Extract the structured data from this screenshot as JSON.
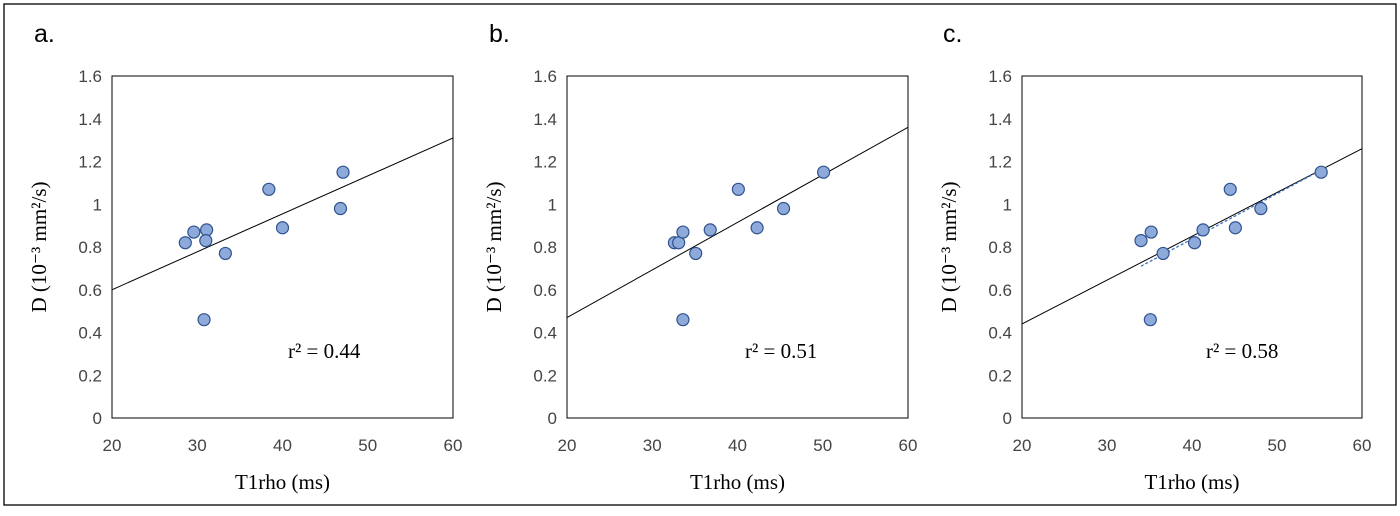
{
  "chart_data": [
    {
      "type": "scatter",
      "panel_label": "a.",
      "xlabel": "T1rho (ms)",
      "ylabel": "D (10⁻³ mm²/s)",
      "xlim": [
        20,
        60
      ],
      "ylim": [
        0,
        1.6
      ],
      "xticks": [
        "20",
        "30",
        "40",
        "50",
        "60"
      ],
      "yticks": [
        "0",
        "0.2",
        "0.4",
        "0.6",
        "0.8",
        "1",
        "1.2",
        "1.4",
        "1.6"
      ],
      "grid": false,
      "annotation": "r² = 0.44",
      "points": [
        {
          "x": 28.6,
          "y": 0.82
        },
        {
          "x": 29.6,
          "y": 0.87
        },
        {
          "x": 31.1,
          "y": 0.88
        },
        {
          "x": 31.0,
          "y": 0.83
        },
        {
          "x": 33.3,
          "y": 0.77
        },
        {
          "x": 38.4,
          "y": 1.07
        },
        {
          "x": 40.0,
          "y": 0.89
        },
        {
          "x": 46.8,
          "y": 0.98
        },
        {
          "x": 47.1,
          "y": 1.15
        },
        {
          "x": 30.8,
          "y": 0.46
        }
      ],
      "trendline": {
        "x": [
          20,
          60
        ],
        "y": [
          0.6,
          1.31
        ]
      },
      "trendline2": null
    },
    {
      "type": "scatter",
      "panel_label": "b.",
      "xlabel": "T1rho (ms)",
      "ylabel": "D (10⁻³ mm²/s)",
      "xlim": [
        20,
        60
      ],
      "ylim": [
        0,
        1.6
      ],
      "xticks": [
        "20",
        "30",
        "40",
        "50",
        "60"
      ],
      "yticks": [
        "0",
        "0.2",
        "0.4",
        "0.6",
        "0.8",
        "1",
        "1.2",
        "1.4",
        "1.6"
      ],
      "grid": false,
      "annotation": "r² = 0.51",
      "points": [
        {
          "x": 32.6,
          "y": 0.82
        },
        {
          "x": 33.1,
          "y": 0.82
        },
        {
          "x": 33.6,
          "y": 0.87
        },
        {
          "x": 35.1,
          "y": 0.77
        },
        {
          "x": 36.8,
          "y": 0.88
        },
        {
          "x": 40.1,
          "y": 1.07
        },
        {
          "x": 42.3,
          "y": 0.89
        },
        {
          "x": 45.4,
          "y": 0.98
        },
        {
          "x": 50.1,
          "y": 1.15
        },
        {
          "x": 33.6,
          "y": 0.46
        }
      ],
      "trendline": {
        "x": [
          20,
          60
        ],
        "y": [
          0.47,
          1.36
        ]
      },
      "trendline2": null
    },
    {
      "type": "scatter",
      "panel_label": "c.",
      "xlabel": "T1rho (ms)",
      "ylabel": "D (10⁻³ mm²/s)",
      "xlim": [
        20,
        60
      ],
      "ylim": [
        0,
        1.6
      ],
      "xticks": [
        "20",
        "30",
        "40",
        "50",
        "60"
      ],
      "yticks": [
        "0",
        "0.2",
        "0.4",
        "0.6",
        "0.8",
        "1",
        "1.2",
        "1.4",
        "1.6"
      ],
      "grid": false,
      "annotation": "r² = 0.58",
      "points": [
        {
          "x": 34.0,
          "y": 0.83
        },
        {
          "x": 35.2,
          "y": 0.87
        },
        {
          "x": 36.6,
          "y": 0.77
        },
        {
          "x": 40.3,
          "y": 0.82
        },
        {
          "x": 41.3,
          "y": 0.88
        },
        {
          "x": 44.5,
          "y": 1.07
        },
        {
          "x": 45.1,
          "y": 0.89
        },
        {
          "x": 48.1,
          "y": 0.98
        },
        {
          "x": 55.2,
          "y": 1.15
        },
        {
          "x": 35.1,
          "y": 0.46
        }
      ],
      "trendline": {
        "x": [
          20,
          60
        ],
        "y": [
          0.44,
          1.26
        ]
      },
      "trendline2": {
        "x": [
          34.0,
          55.2
        ],
        "y": [
          0.71,
          1.16
        ]
      }
    }
  ]
}
